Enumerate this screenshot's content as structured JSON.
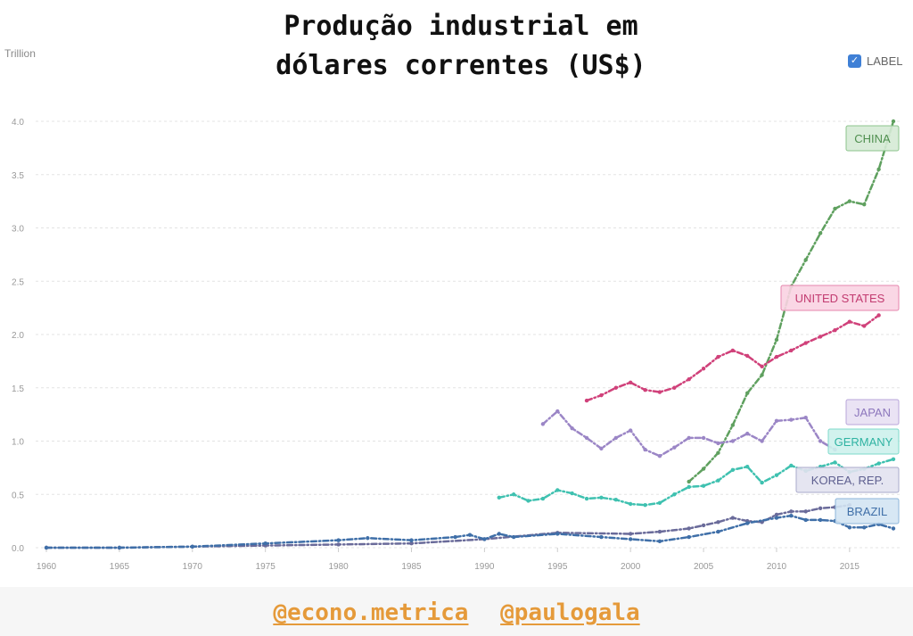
{
  "header": {
    "title_line1": "Produção industrial em",
    "title_line2": "dólares correntes (US$)"
  },
  "unit_label": "Trillion",
  "label_toggle": {
    "label": "LABEL",
    "checked": true
  },
  "footer": {
    "handle1": "@econo.metrica",
    "handle2": "@paulogala"
  },
  "chart_data": {
    "type": "line",
    "ylabel": "Trillion",
    "xlim": [
      1960,
      2018
    ],
    "ylim": [
      0,
      4.0
    ],
    "x_ticks": [
      1960,
      1965,
      1970,
      1975,
      1980,
      1985,
      1990,
      1995,
      2000,
      2005,
      2010,
      2015
    ],
    "y_ticks": [
      0.0,
      0.5,
      1.0,
      1.5,
      2.0,
      2.5,
      3.0,
      3.5,
      4.0
    ],
    "grid": true,
    "series": [
      {
        "name": "CHINA",
        "color": "#5fa05f",
        "x": [
          2004,
          2005,
          2006,
          2007,
          2008,
          2009,
          2010,
          2011,
          2012,
          2013,
          2014,
          2015,
          2016,
          2017,
          2018
        ],
        "y": [
          0.62,
          0.74,
          0.89,
          1.15,
          1.45,
          1.62,
          1.95,
          2.45,
          2.7,
          2.95,
          3.18,
          3.25,
          3.22,
          3.55,
          4.0
        ]
      },
      {
        "name": "UNITED STATES",
        "color": "#d0417a",
        "x": [
          1997,
          1998,
          1999,
          2000,
          2001,
          2002,
          2003,
          2004,
          2005,
          2006,
          2007,
          2008,
          2009,
          2010,
          2011,
          2012,
          2013,
          2014,
          2015,
          2016,
          2017
        ],
        "y": [
          1.38,
          1.43,
          1.5,
          1.55,
          1.48,
          1.46,
          1.5,
          1.58,
          1.68,
          1.79,
          1.85,
          1.8,
          1.7,
          1.79,
          1.85,
          1.92,
          1.98,
          2.04,
          2.12,
          2.08,
          2.18
        ]
      },
      {
        "name": "JAPAN",
        "color": "#9b86c6",
        "x": [
          1994,
          1995,
          1996,
          1997,
          1998,
          1999,
          2000,
          2001,
          2002,
          2003,
          2004,
          2005,
          2006,
          2007,
          2008,
          2009,
          2010,
          2011,
          2012,
          2013,
          2014
        ],
        "y": [
          1.16,
          1.28,
          1.12,
          1.03,
          0.93,
          1.03,
          1.1,
          0.92,
          0.86,
          0.94,
          1.03,
          1.03,
          0.98,
          1.0,
          1.07,
          1.0,
          1.19,
          1.2,
          1.22,
          1.0,
          0.92
        ]
      },
      {
        "name": "GERMANY",
        "color": "#3fc1b0",
        "x": [
          1991,
          1992,
          1993,
          1994,
          1995,
          1996,
          1997,
          1998,
          1999,
          2000,
          2001,
          2002,
          2003,
          2004,
          2005,
          2006,
          2007,
          2008,
          2009,
          2010,
          2011,
          2012,
          2013,
          2014,
          2015,
          2016,
          2017,
          2018
        ],
        "y": [
          0.47,
          0.5,
          0.44,
          0.46,
          0.54,
          0.51,
          0.46,
          0.47,
          0.45,
          0.41,
          0.4,
          0.42,
          0.5,
          0.57,
          0.58,
          0.63,
          0.73,
          0.76,
          0.61,
          0.68,
          0.77,
          0.72,
          0.76,
          0.8,
          0.71,
          0.74,
          0.79,
          0.83
        ]
      },
      {
        "name": "KOREA, REP.",
        "color": "#6a6b9a",
        "x": [
          1960,
          1965,
          1970,
          1975,
          1980,
          1985,
          1990,
          1995,
          2000,
          2002,
          2004,
          2005,
          2006,
          2007,
          2008,
          2009,
          2010,
          2011,
          2012,
          2013,
          2014,
          2015
        ],
        "y": [
          0.0,
          0.0,
          0.01,
          0.02,
          0.03,
          0.04,
          0.08,
          0.14,
          0.13,
          0.15,
          0.18,
          0.21,
          0.24,
          0.28,
          0.25,
          0.24,
          0.31,
          0.34,
          0.34,
          0.37,
          0.38,
          0.4
        ]
      },
      {
        "name": "BRAZIL",
        "color": "#3f6fa8",
        "x": [
          1960,
          1965,
          1970,
          1975,
          1980,
          1982,
          1985,
          1988,
          1989,
          1990,
          1991,
          1992,
          1995,
          1998,
          2000,
          2002,
          2004,
          2006,
          2008,
          2010,
          2011,
          2012,
          2013,
          2014,
          2015,
          2016,
          2017,
          2018
        ],
        "y": [
          0.0,
          0.0,
          0.01,
          0.04,
          0.07,
          0.09,
          0.07,
          0.1,
          0.12,
          0.08,
          0.13,
          0.1,
          0.13,
          0.1,
          0.08,
          0.06,
          0.1,
          0.15,
          0.23,
          0.28,
          0.3,
          0.26,
          0.26,
          0.25,
          0.19,
          0.19,
          0.22,
          0.18
        ]
      }
    ],
    "annotations": [
      {
        "text": "CHINA",
        "bg": "#d5ead5",
        "border": "#8cc58c",
        "color": "#4f8f4f"
      },
      {
        "text": "UNITED STATES",
        "bg": "#f9d3e2",
        "border": "#e586ad",
        "color": "#c23b70"
      },
      {
        "text": "JAPAN",
        "bg": "#e8e0f3",
        "border": "#b8a6da",
        "color": "#8d77bd"
      },
      {
        "text": "GERMANY",
        "bg": "#cdf1ec",
        "border": "#7dd9cb",
        "color": "#2fb3a2"
      },
      {
        "text": "KOREA, REP.",
        "bg": "#e2e2ef",
        "border": "#a9aacb",
        "color": "#5f6090"
      },
      {
        "text": "BRAZIL",
        "bg": "#d3e4f3",
        "border": "#8db5da",
        "color": "#3f6fa8"
      }
    ]
  }
}
